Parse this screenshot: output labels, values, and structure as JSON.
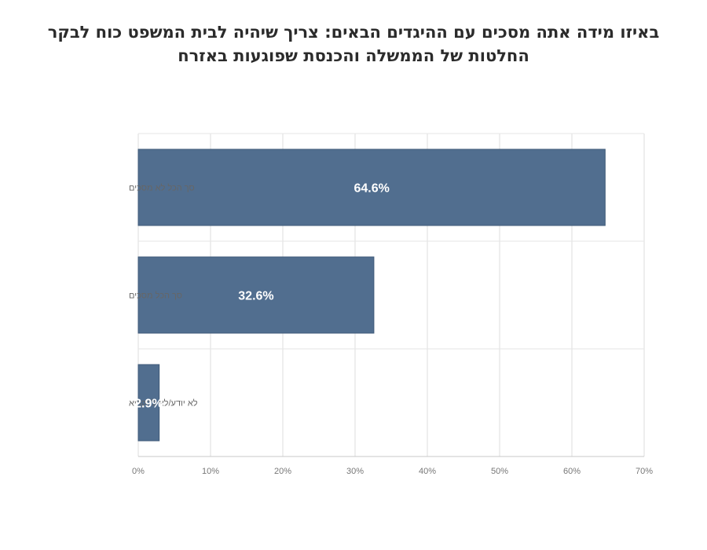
{
  "chart_data": {
    "type": "bar",
    "orientation": "horizontal",
    "title_lines": [
      "באיזו מידה אתה מסכים עם ההיגדים הבאים: צריך שיהיה לבית המשפט כוח לבקר",
      "החלטות של הממשלה והכנסת שפוגעות באזרח"
    ],
    "categories": [
      "סך הכל לא מסכים",
      "סך הכל מסכים",
      "לא יודע/לא להקריא"
    ],
    "values": [
      64.6,
      32.6,
      2.9
    ],
    "data_labels": [
      "64.6%",
      "32.6%",
      "2.9%"
    ],
    "x_ticks": [
      "0%",
      "10%",
      "20%",
      "30%",
      "40%",
      "50%",
      "60%",
      "70%"
    ],
    "xlim": [
      0,
      70
    ],
    "grid": true,
    "legend": "none",
    "bar_color": "#516e8f"
  }
}
